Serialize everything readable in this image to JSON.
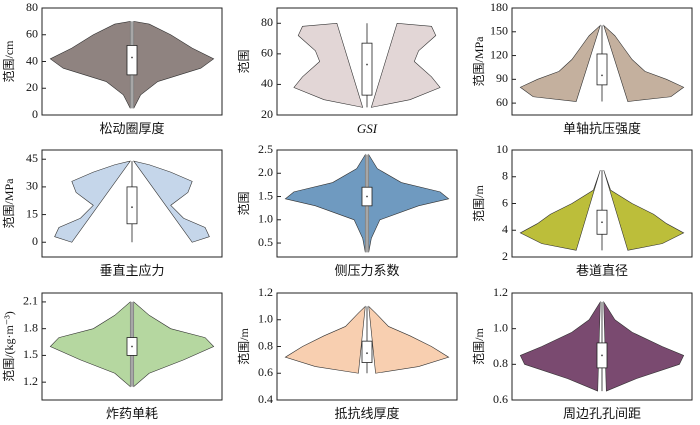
{
  "chart_data": [
    {
      "type": "violin",
      "ylabel": "范围/cm",
      "xlabel": "松动圈厚度",
      "color": "#8f8380",
      "ylim": [
        0,
        80
      ],
      "yticks": [
        0,
        20,
        40,
        60,
        80
      ],
      "y": [
        5,
        15,
        25,
        35,
        42,
        50,
        60,
        68,
        70
      ],
      "density": [
        0.02,
        0.1,
        0.3,
        0.8,
        0.95,
        0.7,
        0.45,
        0.2,
        0.02
      ],
      "box": {
        "whisker_low": 5,
        "q1": 30,
        "median": 43,
        "q3": 52,
        "whisker_high": 70
      }
    },
    {
      "type": "violin",
      "ylabel": "范围",
      "xlabel": "GSI",
      "italic": true,
      "color": "#e2d6d6",
      "ylim": [
        20,
        90
      ],
      "yticks": [
        20,
        40,
        60,
        80
      ],
      "y": [
        25,
        30,
        38,
        45,
        55,
        62,
        72,
        78,
        80
      ],
      "density": [
        0.05,
        0.5,
        0.85,
        0.75,
        0.55,
        0.6,
        0.8,
        0.75,
        0.35
      ],
      "box": {
        "whisker_low": 25,
        "q1": 33,
        "median": 53,
        "q3": 67,
        "whisker_high": 80
      }
    },
    {
      "type": "violin",
      "ylabel": "范围/MPa",
      "xlabel": "单轴抗压强度",
      "color": "#c4b09e",
      "ylim": [
        45,
        180
      ],
      "yticks": [
        60,
        90,
        120,
        150,
        180
      ],
      "y": [
        62,
        68,
        80,
        90,
        100,
        115,
        130,
        145,
        158
      ],
      "density": [
        0.3,
        0.8,
        0.95,
        0.75,
        0.5,
        0.35,
        0.25,
        0.15,
        0.02
      ],
      "box": {
        "whisker_low": 62,
        "q1": 83,
        "median": 95,
        "q3": 122,
        "whisker_high": 158
      }
    },
    {
      "type": "violin",
      "ylabel": "范围/MPa",
      "xlabel": "垂直主应力",
      "color": "#c5d6ea",
      "ylim": [
        -8,
        50
      ],
      "yticks": [
        0,
        15,
        30,
        45
      ],
      "y": [
        0,
        3,
        8,
        13,
        20,
        27,
        33,
        38,
        42,
        44
      ],
      "density": [
        0.7,
        0.9,
        0.85,
        0.6,
        0.45,
        0.65,
        0.7,
        0.45,
        0.2,
        0.02
      ],
      "box": {
        "whisker_low": 0,
        "q1": 10,
        "median": 19,
        "q3": 30,
        "whisker_high": 44
      }
    },
    {
      "type": "violin",
      "ylabel": "范围",
      "xlabel": "侧压力系数",
      "color": "#6f9ac0",
      "ylim": [
        0.2,
        2.5
      ],
      "yticks": [
        0.5,
        {
          "value": 1,
          "label": "1.0"
        },
        1.5,
        {
          "value": 2,
          "label": "2.0"
        },
        2.5
      ],
      "y": [
        0.3,
        0.6,
        1.0,
        1.3,
        1.45,
        1.6,
        1.8,
        2.1,
        2.4
      ],
      "density": [
        0.02,
        0.05,
        0.15,
        0.6,
        0.95,
        0.85,
        0.4,
        0.12,
        0.02
      ],
      "box": {
        "whisker_low": 0.3,
        "q1": 1.3,
        "median": 1.5,
        "q3": 1.7,
        "whisker_high": 2.4
      }
    },
    {
      "type": "violin",
      "ylabel": "范围/m",
      "xlabel": "巷道直径",
      "color": "#bcbe3a",
      "ylim": [
        2,
        10
      ],
      "yticks": [
        2,
        4,
        6,
        8,
        10
      ],
      "y": [
        2.5,
        3,
        3.8,
        4.5,
        5.2,
        6,
        7,
        8.5
      ],
      "density": [
        0.3,
        0.7,
        0.95,
        0.75,
        0.6,
        0.35,
        0.1,
        0.02
      ],
      "box": {
        "whisker_low": 2.5,
        "q1": 3.7,
        "median": 4.6,
        "q3": 5.5,
        "whisker_high": 8.5
      }
    },
    {
      "type": "violin",
      "ylabel": "范围/(kg·m⁻³)",
      "xlabel": "炸药单耗",
      "color": "#b5d7a0",
      "ylim": [
        1.0,
        2.2
      ],
      "yticks": [
        1.2,
        1.5,
        1.8,
        2.1
      ],
      "y": [
        1.15,
        1.3,
        1.45,
        1.6,
        1.7,
        1.8,
        1.95,
        2.1
      ],
      "density": [
        0.02,
        0.2,
        0.6,
        0.95,
        0.85,
        0.45,
        0.2,
        0.02
      ],
      "box": {
        "whisker_low": 1.15,
        "q1": 1.5,
        "median": 1.6,
        "q3": 1.7,
        "whisker_high": 2.1
      }
    },
    {
      "type": "violin",
      "ylabel": "范围/m",
      "xlabel": "抵抗线厚度",
      "color": "#f8cfb0",
      "ylim": [
        0.4,
        1.2
      ],
      "yticks": [
        0.4,
        0.6,
        0.8,
        {
          "value": 1,
          "label": "1.0"
        },
        1.2
      ],
      "y": [
        0.6,
        0.65,
        0.72,
        0.8,
        0.88,
        0.95,
        1.05,
        1.1
      ],
      "density": [
        0.1,
        0.6,
        0.95,
        0.75,
        0.5,
        0.25,
        0.1,
        0.02
      ],
      "box": {
        "whisker_low": 0.6,
        "q1": 0.68,
        "median": 0.75,
        "q3": 0.84,
        "whisker_high": 1.1
      }
    },
    {
      "type": "violin",
      "ylabel": "范围/m",
      "xlabel": "周边孔孔间距",
      "color": "#7a4a70",
      "ylim": [
        0.6,
        1.2
      ],
      "yticks": [
        0.6,
        0.8,
        {
          "value": 1,
          "label": "1.0"
        },
        1.2
      ],
      "y": [
        0.65,
        0.72,
        0.8,
        0.85,
        0.9,
        0.98,
        1.05,
        1.15
      ],
      "density": [
        0.05,
        0.4,
        0.9,
        0.95,
        0.7,
        0.35,
        0.15,
        0.02
      ],
      "box": {
        "whisker_low": 0.65,
        "q1": 0.78,
        "median": 0.85,
        "q3": 0.92,
        "whisker_high": 1.15
      }
    }
  ]
}
